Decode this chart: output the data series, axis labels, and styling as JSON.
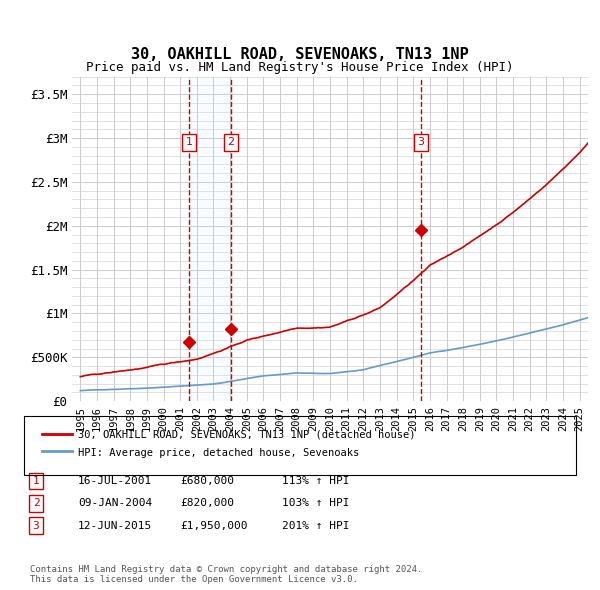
{
  "title": "30, OAKHILL ROAD, SEVENOAKS, TN13 1NP",
  "subtitle": "Price paid vs. HM Land Registry's House Price Index (HPI)",
  "ylabel_ticks": [
    "£0",
    "£500K",
    "£1M",
    "£1.5M",
    "£2M",
    "£2.5M",
    "£3M",
    "£3.5M"
  ],
  "ylabel_vals": [
    0,
    500000,
    1000000,
    1500000,
    2000000,
    2500000,
    3000000,
    3500000
  ],
  "xlim": [
    1994.5,
    2025.5
  ],
  "ylim": [
    0,
    3700000
  ],
  "sale_dates": [
    2001.54,
    2004.03,
    2015.45
  ],
  "sale_prices": [
    680000,
    820000,
    1950000
  ],
  "sale_labels": [
    "1",
    "2",
    "3"
  ],
  "sale_info": [
    {
      "label": "1",
      "date": "16-JUL-2001",
      "price": "£680,000",
      "hpi": "113% ↑ HPI"
    },
    {
      "label": "2",
      "date": "09-JAN-2004",
      "price": "£820,000",
      "hpi": "103% ↑ HPI"
    },
    {
      "label": "3",
      "date": "12-JUN-2015",
      "price": "£1,950,000",
      "hpi": "201% ↑ HPI"
    }
  ],
  "legend_red": "30, OAKHILL ROAD, SEVENOAKS, TN13 1NP (detached house)",
  "legend_blue": "HPI: Average price, detached house, Sevenoaks",
  "footer": "Contains HM Land Registry data © Crown copyright and database right 2024.\nThis data is licensed under the Open Government Licence v3.0.",
  "red_color": "#cc0000",
  "blue_color": "#6699cc",
  "background_color": "#ffffff",
  "grid_color": "#cccccc",
  "shade_color": "#ddeeff"
}
